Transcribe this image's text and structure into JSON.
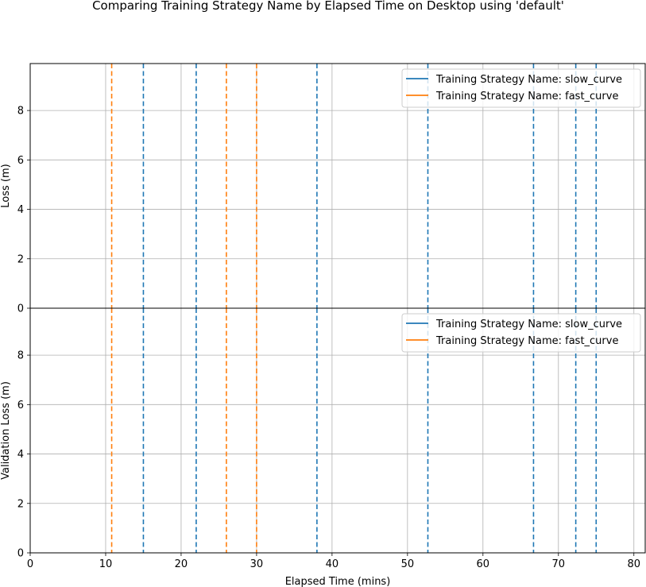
{
  "title": "Comparing Training Strategy Name by Elapsed Time on Desktop using 'default'",
  "chart_data": {
    "type": "line",
    "title": "Comparing Training Strategy Name by Elapsed Time on Desktop using 'default'",
    "xlabel": "Elapsed Time (mins)",
    "xlim": [
      0,
      81.5
    ],
    "x_ticks": [
      0,
      10,
      20,
      30,
      40,
      50,
      60,
      70,
      80
    ],
    "grid": true,
    "legend_position": "top-right",
    "series": [
      {
        "name": "Training Strategy Name: slow_curve",
        "color": "#1f77b4",
        "vlines_x": [
          15.0,
          22.0,
          38.0,
          52.7,
          66.7,
          72.3,
          75.0
        ]
      },
      {
        "name": "Training Strategy Name: fast_curve",
        "color": "#ff7f0e",
        "vlines_x": [
          10.8,
          26.0,
          30.0
        ]
      }
    ],
    "subplots": [
      {
        "ylabel": "Loss (m)",
        "ylim": [
          0,
          9.9
        ],
        "y_ticks": [
          0,
          2,
          4,
          6,
          8
        ]
      },
      {
        "ylabel": "Validation Loss (m)",
        "ylim": [
          0,
          9.9
        ],
        "y_ticks": [
          0,
          2,
          4,
          6,
          8
        ]
      }
    ]
  }
}
